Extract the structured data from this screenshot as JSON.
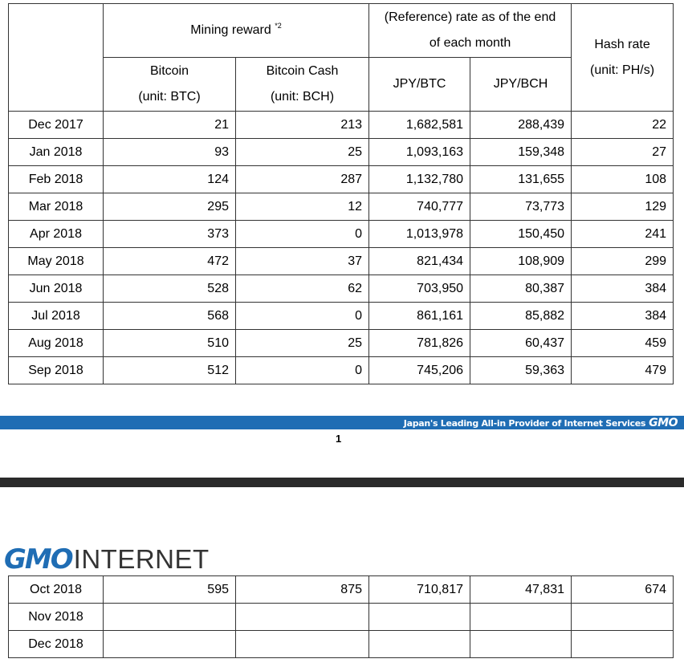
{
  "header": {
    "mining_reward": "Mining reward",
    "mining_reward_note": "*2",
    "rate_line1": "(Reference) rate as of the end",
    "rate_line2": "of each month",
    "hash_rate": "Hash rate",
    "hash_rate_unit": "(unit: PH/s)",
    "bitcoin": "Bitcoin",
    "bitcoin_unit": "(unit: BTC)",
    "bitcoin_cash": "Bitcoin Cash",
    "bitcoin_cash_unit": "(unit: BCH)",
    "jpy_btc": "JPY/BTC",
    "jpy_bch": "JPY/BCH"
  },
  "rows": [
    {
      "month": "Dec 2017",
      "btc": "21",
      "bch": "213",
      "jpy_btc": "1,682,581",
      "jpy_bch": "288,439",
      "hash": "22"
    },
    {
      "month": "Jan 2018",
      "btc": "93",
      "bch": "25",
      "jpy_btc": "1,093,163",
      "jpy_bch": "159,348",
      "hash": "27"
    },
    {
      "month": "Feb 2018",
      "btc": "124",
      "bch": "287",
      "jpy_btc": "1,132,780",
      "jpy_bch": "131,655",
      "hash": "108"
    },
    {
      "month": "Mar 2018",
      "btc": "295",
      "bch": "12",
      "jpy_btc": "740,777",
      "jpy_bch": "73,773",
      "hash": "129"
    },
    {
      "month": "Apr 2018",
      "btc": "373",
      "bch": "0",
      "jpy_btc": "1,013,978",
      "jpy_bch": "150,450",
      "hash": "241"
    },
    {
      "month": "May 2018",
      "btc": "472",
      "bch": "37",
      "jpy_btc": "821,434",
      "jpy_bch": "108,909",
      "hash": "299"
    },
    {
      "month": "Jun 2018",
      "btc": "528",
      "bch": "62",
      "jpy_btc": "703,950",
      "jpy_bch": "80,387",
      "hash": "384"
    },
    {
      "month": "Jul 2018",
      "btc": "568",
      "bch": "0",
      "jpy_btc": "861,161",
      "jpy_bch": "85,882",
      "hash": "384"
    },
    {
      "month": "Aug 2018",
      "btc": "510",
      "bch": "25",
      "jpy_btc": "781,826",
      "jpy_bch": "60,437",
      "hash": "459"
    },
    {
      "month": "Sep 2018",
      "btc": "512",
      "bch": "0",
      "jpy_btc": "745,206",
      "jpy_bch": "59,363",
      "hash": "479"
    }
  ],
  "rows2": [
    {
      "month": "Oct 2018",
      "btc": "595",
      "bch": "875",
      "jpy_btc": "710,817",
      "jpy_bch": "47,831",
      "hash": "674"
    },
    {
      "month": "Nov 2018",
      "btc": "",
      "bch": "",
      "jpy_btc": "",
      "jpy_bch": "",
      "hash": ""
    },
    {
      "month": "Dec 2018",
      "btc": "",
      "bch": "",
      "jpy_btc": "",
      "jpy_bch": "",
      "hash": ""
    }
  ],
  "footer": {
    "tagline": "Japan's Leading All-in Provider of Internet Services",
    "tagline_logo": "GMO",
    "page_number": "1"
  },
  "logo": {
    "gmo": "GMO",
    "internet": "INTERNET"
  },
  "colors": {
    "brand_blue": "#1f6db4",
    "dark_bar": "#2b2b2b",
    "border": "#333333"
  }
}
